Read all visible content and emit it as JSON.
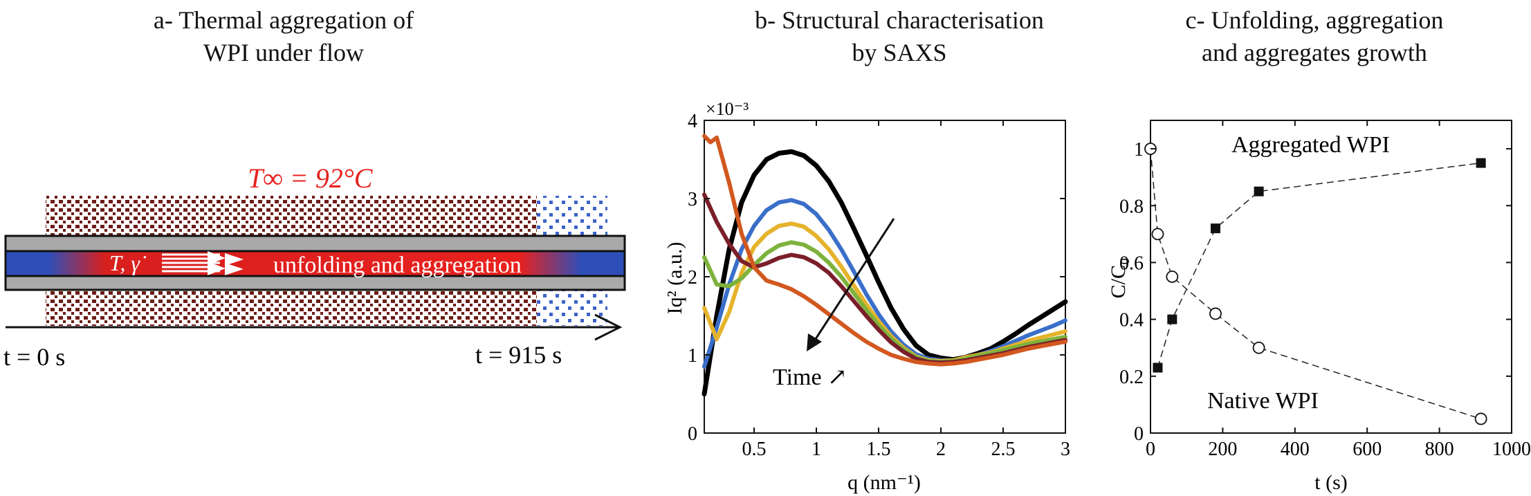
{
  "panel_a": {
    "title_line1": "a- Thermal aggregation of",
    "title_line2": "WPI under flow",
    "temperature_label": "T∞ = 92°C",
    "flow_label": "T, γ̇",
    "process_label": "unfolding and aggregation",
    "time_start": "t = 0 s",
    "time_end": "t = 915 s",
    "colors": {
      "hot": "#e8211e",
      "cold": "#2f4fb8",
      "wall": "#a9a9a9",
      "hatch": "#6b1d14",
      "cool_hatch": "#3d63c9"
    }
  },
  "chart_data": [
    {
      "type": "line",
      "title": "b- Structural characterisation by SAXS",
      "title_line1": "b- Structural characterisation",
      "title_line2": "by SAXS",
      "xlabel": "q (nm⁻¹)",
      "ylabel": "Iq² (a.u.)",
      "y_multiplier": "×10⁻³",
      "xlim": [
        0.1,
        3.0
      ],
      "ylim": [
        0,
        4
      ],
      "xticks": [
        0.5,
        1,
        1.5,
        2,
        2.5,
        3
      ],
      "xtick_labels": [
        "0.5",
        "1",
        "1.5",
        "2",
        "2.5",
        "3"
      ],
      "yticks": [
        0,
        1,
        2,
        3,
        4
      ],
      "ytick_labels": [
        "0",
        "1",
        "2",
        "3",
        "4"
      ],
      "annotation": "Time ↗",
      "grid": false,
      "series": [
        {
          "color": "#000000",
          "x": [
            0.1,
            0.2,
            0.3,
            0.4,
            0.5,
            0.6,
            0.7,
            0.8,
            0.9,
            1.0,
            1.1,
            1.2,
            1.3,
            1.4,
            1.5,
            1.6,
            1.7,
            1.8,
            1.9,
            2.0,
            2.1,
            2.2,
            2.3,
            2.4,
            2.5,
            2.6,
            2.7,
            2.8,
            2.9,
            3.0
          ],
          "y": [
            0.5,
            1.5,
            2.35,
            2.95,
            3.3,
            3.5,
            3.58,
            3.6,
            3.55,
            3.42,
            3.22,
            2.95,
            2.62,
            2.28,
            1.93,
            1.6,
            1.33,
            1.12,
            1.0,
            0.96,
            0.94,
            0.97,
            1.02,
            1.08,
            1.17,
            1.27,
            1.38,
            1.48,
            1.58,
            1.68
          ]
        },
        {
          "color": "#3a6fc9",
          "x": [
            0.1,
            0.2,
            0.3,
            0.4,
            0.5,
            0.6,
            0.7,
            0.8,
            0.9,
            1.0,
            1.1,
            1.2,
            1.3,
            1.4,
            1.5,
            1.6,
            1.7,
            1.8,
            1.9,
            2.0,
            2.1,
            2.2,
            2.3,
            2.4,
            2.5,
            2.6,
            2.7,
            2.8,
            2.9,
            3.0
          ],
          "y": [
            0.85,
            1.35,
            1.9,
            2.35,
            2.65,
            2.85,
            2.95,
            2.98,
            2.93,
            2.8,
            2.6,
            2.35,
            2.07,
            1.78,
            1.52,
            1.3,
            1.13,
            1.01,
            0.95,
            0.93,
            0.93,
            0.96,
            1.0,
            1.05,
            1.11,
            1.18,
            1.25,
            1.31,
            1.37,
            1.44
          ]
        },
        {
          "color": "#e5b32c",
          "x": [
            0.1,
            0.2,
            0.3,
            0.4,
            0.5,
            0.6,
            0.7,
            0.8,
            0.9,
            1.0,
            1.1,
            1.2,
            1.3,
            1.4,
            1.5,
            1.6,
            1.7,
            1.8,
            1.9,
            2.0,
            2.1,
            2.2,
            2.3,
            2.4,
            2.5,
            2.6,
            2.7,
            2.8,
            2.9,
            3.0
          ],
          "y": [
            1.6,
            1.2,
            1.55,
            2.05,
            2.38,
            2.55,
            2.65,
            2.68,
            2.64,
            2.52,
            2.35,
            2.13,
            1.89,
            1.65,
            1.43,
            1.24,
            1.09,
            0.98,
            0.93,
            0.92,
            0.93,
            0.97,
            1.0,
            1.03,
            1.08,
            1.13,
            1.18,
            1.22,
            1.26,
            1.3
          ]
        },
        {
          "color": "#7db23c",
          "x": [
            0.1,
            0.2,
            0.3,
            0.4,
            0.5,
            0.6,
            0.7,
            0.8,
            0.9,
            1.0,
            1.1,
            1.2,
            1.3,
            1.4,
            1.5,
            1.6,
            1.7,
            1.8,
            1.9,
            2.0,
            2.1,
            2.2,
            2.3,
            2.4,
            2.5,
            2.6,
            2.7,
            2.8,
            2.9,
            3.0
          ],
          "y": [
            2.25,
            1.9,
            1.88,
            1.98,
            2.15,
            2.3,
            2.4,
            2.44,
            2.41,
            2.32,
            2.18,
            2.0,
            1.79,
            1.58,
            1.38,
            1.21,
            1.07,
            0.97,
            0.92,
            0.91,
            0.92,
            0.95,
            0.99,
            1.02,
            1.06,
            1.1,
            1.14,
            1.17,
            1.2,
            1.23
          ]
        },
        {
          "color": "#7a1f2a",
          "x": [
            0.1,
            0.2,
            0.3,
            0.4,
            0.5,
            0.6,
            0.7,
            0.8,
            0.9,
            1.0,
            1.1,
            1.2,
            1.3,
            1.4,
            1.5,
            1.6,
            1.7,
            1.8,
            1.9,
            2.0,
            2.1,
            2.2,
            2.3,
            2.4,
            2.5,
            2.6,
            2.7,
            2.8,
            2.9,
            3.0
          ],
          "y": [
            3.05,
            2.7,
            2.42,
            2.2,
            2.12,
            2.17,
            2.24,
            2.28,
            2.25,
            2.17,
            2.05,
            1.88,
            1.69,
            1.5,
            1.32,
            1.16,
            1.04,
            0.95,
            0.91,
            0.9,
            0.91,
            0.93,
            0.96,
            0.99,
            1.02,
            1.06,
            1.1,
            1.13,
            1.16,
            1.19
          ]
        },
        {
          "color": "#d2581f",
          "x": [
            0.1,
            0.15,
            0.2,
            0.3,
            0.4,
            0.5,
            0.6,
            0.7,
            0.8,
            0.9,
            1.0,
            1.1,
            1.2,
            1.3,
            1.4,
            1.5,
            1.6,
            1.7,
            1.8,
            1.9,
            2.0,
            2.1,
            2.2,
            2.3,
            2.4,
            2.5,
            2.6,
            2.7,
            2.8,
            2.9,
            3.0
          ],
          "y": [
            3.8,
            3.72,
            3.78,
            3.2,
            2.55,
            2.12,
            1.95,
            1.9,
            1.84,
            1.75,
            1.64,
            1.52,
            1.4,
            1.28,
            1.17,
            1.08,
            1.0,
            0.95,
            0.91,
            0.89,
            0.88,
            0.89,
            0.91,
            0.94,
            0.97,
            1.0,
            1.04,
            1.08,
            1.11,
            1.14,
            1.17
          ]
        }
      ]
    },
    {
      "type": "line",
      "title": "c- Unfolding, aggregation and aggregates growth",
      "title_line1": "c- Unfolding, aggregation",
      "title_line2": "and aggregates growth",
      "xlabel": "t (s)",
      "ylabel": "C/C₀",
      "xlim": [
        0,
        1000
      ],
      "ylim": [
        0,
        1.1
      ],
      "xticks": [
        0,
        200,
        400,
        600,
        800,
        1000
      ],
      "xtick_labels": [
        "0",
        "200",
        "400",
        "600",
        "800",
        "1000"
      ],
      "yticks": [
        0,
        0.2,
        0.4,
        0.6,
        0.8,
        1.0
      ],
      "ytick_labels": [
        "0",
        "0.2",
        "0.4",
        "0.6",
        "0.8",
        "1"
      ],
      "grid": false,
      "series": [
        {
          "name": "Aggregated WPI",
          "marker": "filled-square",
          "x": [
            20,
            60,
            180,
            300,
            915
          ],
          "y": [
            0.23,
            0.4,
            0.72,
            0.85,
            0.95
          ]
        },
        {
          "name": "Native WPI",
          "marker": "open-circle",
          "x": [
            0,
            20,
            60,
            180,
            300,
            915
          ],
          "y": [
            1.0,
            0.7,
            0.55,
            0.42,
            0.3,
            0.05
          ]
        }
      ]
    }
  ]
}
